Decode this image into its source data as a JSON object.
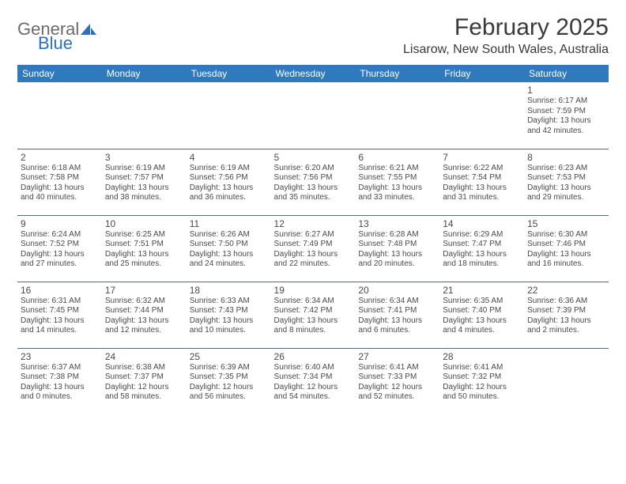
{
  "logo": {
    "line1": "General",
    "line2": "Blue"
  },
  "title": "February 2025",
  "location": "Lisarow, New South Wales, Australia",
  "day_headers": [
    "Sunday",
    "Monday",
    "Tuesday",
    "Wednesday",
    "Thursday",
    "Friday",
    "Saturday"
  ],
  "colors": {
    "header_bg": "#2f79bd",
    "header_fg": "#ffffff",
    "rule": "#5a6a78",
    "logo_gray": "#6b6b6b",
    "logo_blue": "#2a73b8"
  },
  "weeks": [
    [
      {
        "num": "",
        "sunrise": "",
        "sunset": "",
        "daylight": ""
      },
      {
        "num": "",
        "sunrise": "",
        "sunset": "",
        "daylight": ""
      },
      {
        "num": "",
        "sunrise": "",
        "sunset": "",
        "daylight": ""
      },
      {
        "num": "",
        "sunrise": "",
        "sunset": "",
        "daylight": ""
      },
      {
        "num": "",
        "sunrise": "",
        "sunset": "",
        "daylight": ""
      },
      {
        "num": "",
        "sunrise": "",
        "sunset": "",
        "daylight": ""
      },
      {
        "num": "1",
        "sunrise": "Sunrise: 6:17 AM",
        "sunset": "Sunset: 7:59 PM",
        "daylight": "Daylight: 13 hours and 42 minutes."
      }
    ],
    [
      {
        "num": "2",
        "sunrise": "Sunrise: 6:18 AM",
        "sunset": "Sunset: 7:58 PM",
        "daylight": "Daylight: 13 hours and 40 minutes."
      },
      {
        "num": "3",
        "sunrise": "Sunrise: 6:19 AM",
        "sunset": "Sunset: 7:57 PM",
        "daylight": "Daylight: 13 hours and 38 minutes."
      },
      {
        "num": "4",
        "sunrise": "Sunrise: 6:19 AM",
        "sunset": "Sunset: 7:56 PM",
        "daylight": "Daylight: 13 hours and 36 minutes."
      },
      {
        "num": "5",
        "sunrise": "Sunrise: 6:20 AM",
        "sunset": "Sunset: 7:56 PM",
        "daylight": "Daylight: 13 hours and 35 minutes."
      },
      {
        "num": "6",
        "sunrise": "Sunrise: 6:21 AM",
        "sunset": "Sunset: 7:55 PM",
        "daylight": "Daylight: 13 hours and 33 minutes."
      },
      {
        "num": "7",
        "sunrise": "Sunrise: 6:22 AM",
        "sunset": "Sunset: 7:54 PM",
        "daylight": "Daylight: 13 hours and 31 minutes."
      },
      {
        "num": "8",
        "sunrise": "Sunrise: 6:23 AM",
        "sunset": "Sunset: 7:53 PM",
        "daylight": "Daylight: 13 hours and 29 minutes."
      }
    ],
    [
      {
        "num": "9",
        "sunrise": "Sunrise: 6:24 AM",
        "sunset": "Sunset: 7:52 PM",
        "daylight": "Daylight: 13 hours and 27 minutes."
      },
      {
        "num": "10",
        "sunrise": "Sunrise: 6:25 AM",
        "sunset": "Sunset: 7:51 PM",
        "daylight": "Daylight: 13 hours and 25 minutes."
      },
      {
        "num": "11",
        "sunrise": "Sunrise: 6:26 AM",
        "sunset": "Sunset: 7:50 PM",
        "daylight": "Daylight: 13 hours and 24 minutes."
      },
      {
        "num": "12",
        "sunrise": "Sunrise: 6:27 AM",
        "sunset": "Sunset: 7:49 PM",
        "daylight": "Daylight: 13 hours and 22 minutes."
      },
      {
        "num": "13",
        "sunrise": "Sunrise: 6:28 AM",
        "sunset": "Sunset: 7:48 PM",
        "daylight": "Daylight: 13 hours and 20 minutes."
      },
      {
        "num": "14",
        "sunrise": "Sunrise: 6:29 AM",
        "sunset": "Sunset: 7:47 PM",
        "daylight": "Daylight: 13 hours and 18 minutes."
      },
      {
        "num": "15",
        "sunrise": "Sunrise: 6:30 AM",
        "sunset": "Sunset: 7:46 PM",
        "daylight": "Daylight: 13 hours and 16 minutes."
      }
    ],
    [
      {
        "num": "16",
        "sunrise": "Sunrise: 6:31 AM",
        "sunset": "Sunset: 7:45 PM",
        "daylight": "Daylight: 13 hours and 14 minutes."
      },
      {
        "num": "17",
        "sunrise": "Sunrise: 6:32 AM",
        "sunset": "Sunset: 7:44 PM",
        "daylight": "Daylight: 13 hours and 12 minutes."
      },
      {
        "num": "18",
        "sunrise": "Sunrise: 6:33 AM",
        "sunset": "Sunset: 7:43 PM",
        "daylight": "Daylight: 13 hours and 10 minutes."
      },
      {
        "num": "19",
        "sunrise": "Sunrise: 6:34 AM",
        "sunset": "Sunset: 7:42 PM",
        "daylight": "Daylight: 13 hours and 8 minutes."
      },
      {
        "num": "20",
        "sunrise": "Sunrise: 6:34 AM",
        "sunset": "Sunset: 7:41 PM",
        "daylight": "Daylight: 13 hours and 6 minutes."
      },
      {
        "num": "21",
        "sunrise": "Sunrise: 6:35 AM",
        "sunset": "Sunset: 7:40 PM",
        "daylight": "Daylight: 13 hours and 4 minutes."
      },
      {
        "num": "22",
        "sunrise": "Sunrise: 6:36 AM",
        "sunset": "Sunset: 7:39 PM",
        "daylight": "Daylight: 13 hours and 2 minutes."
      }
    ],
    [
      {
        "num": "23",
        "sunrise": "Sunrise: 6:37 AM",
        "sunset": "Sunset: 7:38 PM",
        "daylight": "Daylight: 13 hours and 0 minutes."
      },
      {
        "num": "24",
        "sunrise": "Sunrise: 6:38 AM",
        "sunset": "Sunset: 7:37 PM",
        "daylight": "Daylight: 12 hours and 58 minutes."
      },
      {
        "num": "25",
        "sunrise": "Sunrise: 6:39 AM",
        "sunset": "Sunset: 7:35 PM",
        "daylight": "Daylight: 12 hours and 56 minutes."
      },
      {
        "num": "26",
        "sunrise": "Sunrise: 6:40 AM",
        "sunset": "Sunset: 7:34 PM",
        "daylight": "Daylight: 12 hours and 54 minutes."
      },
      {
        "num": "27",
        "sunrise": "Sunrise: 6:41 AM",
        "sunset": "Sunset: 7:33 PM",
        "daylight": "Daylight: 12 hours and 52 minutes."
      },
      {
        "num": "28",
        "sunrise": "Sunrise: 6:41 AM",
        "sunset": "Sunset: 7:32 PM",
        "daylight": "Daylight: 12 hours and 50 minutes."
      },
      {
        "num": "",
        "sunrise": "",
        "sunset": "",
        "daylight": ""
      }
    ]
  ]
}
